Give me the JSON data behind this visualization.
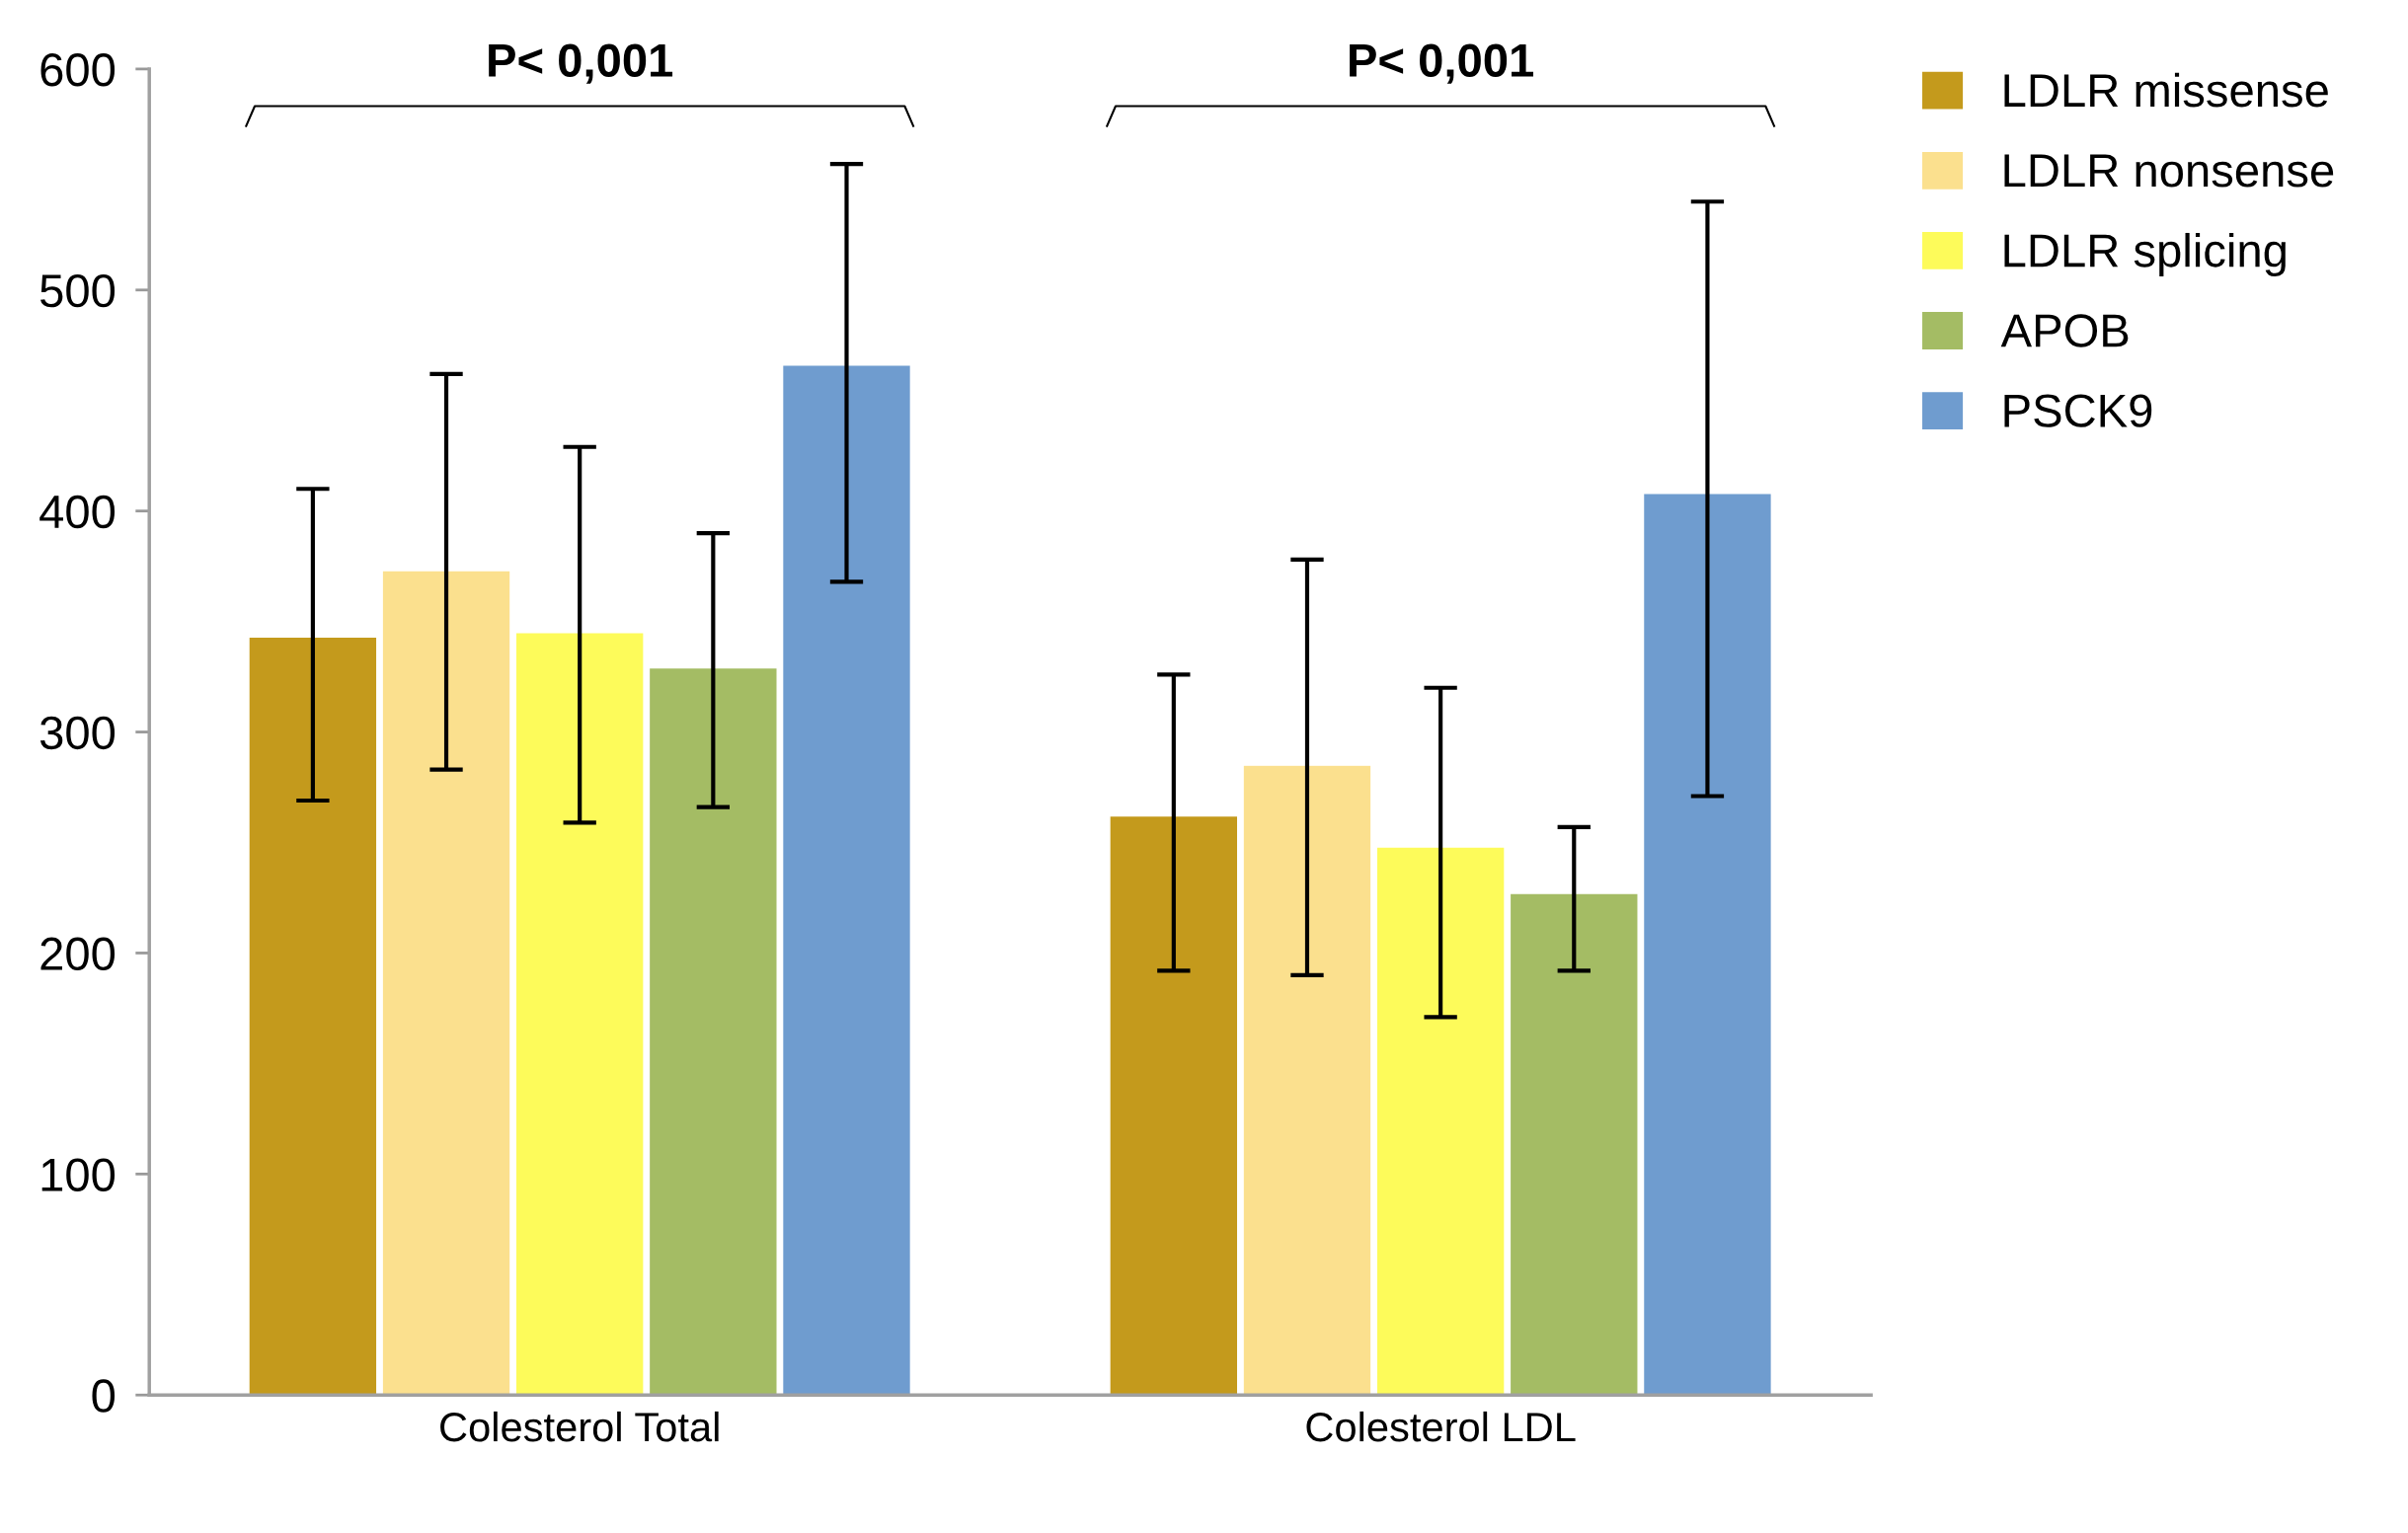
{
  "chart_data": {
    "type": "bar",
    "categories": [
      "Colesterol Total",
      "Colesterol LDL"
    ],
    "series": [
      {
        "name": "LDLR missense",
        "color": "#c49a1c",
        "values": [
          343,
          262
        ],
        "errors": [
          [
            269,
            410
          ],
          [
            192,
            326
          ]
        ]
      },
      {
        "name": "LDLR nonsense",
        "color": "#fbe08e",
        "values": [
          373,
          285
        ],
        "errors": [
          [
            283,
            462
          ],
          [
            190,
            378
          ]
        ]
      },
      {
        "name": "LDLR splicing",
        "color": "#fdfb5a",
        "values": [
          345,
          248
        ],
        "errors": [
          [
            259,
            429
          ],
          [
            171,
            320
          ]
        ]
      },
      {
        "name": "APOB",
        "color": "#a4bc64",
        "values": [
          329,
          227
        ],
        "errors": [
          [
            266,
            390
          ],
          [
            192,
            257
          ]
        ]
      },
      {
        "name": "PSCK9",
        "color": "#6f9ccf",
        "values": [
          466,
          408
        ],
        "errors": [
          [
            368,
            557
          ],
          [
            271,
            540
          ]
        ]
      }
    ],
    "annotations": [
      "P< 0,001",
      "P< 0,001"
    ],
    "ylim": [
      0,
      600
    ],
    "yticks": [
      0,
      100,
      200,
      300,
      400,
      500,
      600
    ],
    "grid": false,
    "legend": "right"
  }
}
